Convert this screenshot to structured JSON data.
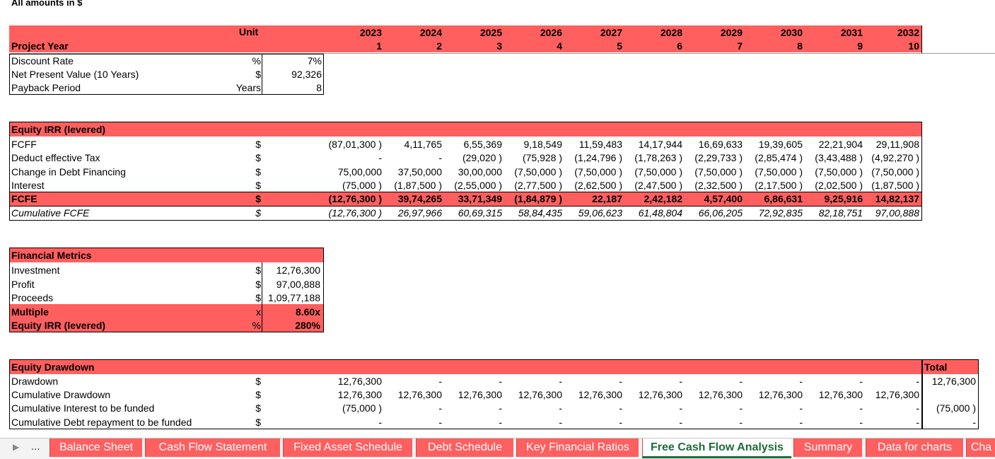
{
  "note": "All amounts in $",
  "header": {
    "unit": "Unit",
    "project_year": "Project Year",
    "years": [
      "2023",
      "2024",
      "2025",
      "2026",
      "2027",
      "2028",
      "2029",
      "2030",
      "2031",
      "2032"
    ],
    "nums": [
      "1",
      "2",
      "3",
      "4",
      "5",
      "6",
      "7",
      "8",
      "9",
      "10"
    ]
  },
  "summary": [
    {
      "label": "Discount Rate",
      "unit": "%",
      "value": "7%"
    },
    {
      "label": "Net Present Value (10 Years)",
      "unit": "$",
      "value": "92,326"
    },
    {
      "label": "Payback Period",
      "unit": "Years",
      "value": "8"
    }
  ],
  "irr": {
    "title": "Equity IRR (levered)",
    "rows": [
      {
        "label": "FCFF",
        "unit": "$",
        "vals": [
          "(87,01,300 )",
          "4,11,765",
          "6,55,369",
          "9,18,549",
          "11,59,483",
          "14,17,944",
          "16,69,633",
          "19,39,605",
          "22,21,904",
          "29,11,908"
        ]
      },
      {
        "label": "Deduct effective Tax",
        "unit": "$",
        "vals": [
          "-",
          "-",
          "(29,020 )",
          "(75,928 )",
          "(1,24,796 )",
          "(1,78,263 )",
          "(2,29,733 )",
          "(2,85,474 )",
          "(3,43,488 )",
          "(4,92,270 )"
        ]
      },
      {
        "label": "Change in Debt Financing",
        "unit": "$",
        "vals": [
          "75,00,000",
          "37,50,000",
          "30,00,000",
          "(7,50,000 )",
          "(7,50,000 )",
          "(7,50,000 )",
          "(7,50,000 )",
          "(7,50,000 )",
          "(7,50,000 )",
          "(7,50,000 )"
        ]
      },
      {
        "label": "Interest",
        "unit": "$",
        "vals": [
          "(75,000 )",
          "(1,87,500 )",
          "(2,55,000 )",
          "(2,77,500 )",
          "(2,62,500 )",
          "(2,47,500 )",
          "(2,32,500 )",
          "(2,17,500 )",
          "(2,02,500 )",
          "(1,87,500 )"
        ]
      },
      {
        "label": "FCFE",
        "unit": "$",
        "vals": [
          "(12,76,300 )",
          "39,74,265",
          "33,71,349",
          "(1,84,879 )",
          "22,187",
          "2,42,182",
          "4,57,400",
          "6,86,631",
          "9,25,916",
          "14,82,137"
        ]
      },
      {
        "label": "Cumulative FCFE",
        "unit": "$",
        "vals": [
          "(12,76,300 )",
          "26,97,966",
          "60,69,315",
          "58,84,435",
          "59,06,623",
          "61,48,804",
          "66,06,205",
          "72,92,835",
          "82,18,751",
          "97,00,888"
        ]
      }
    ]
  },
  "metrics": {
    "title": "Financial Metrics",
    "rows": [
      {
        "label": "Investment",
        "unit": "$",
        "value": "12,76,300"
      },
      {
        "label": "Profit",
        "unit": "$",
        "value": "97,00,888"
      },
      {
        "label": "Proceeds",
        "unit": "$",
        "value": "1,09,77,188"
      },
      {
        "label": "Multiple",
        "unit": "x",
        "value": "8.60x"
      },
      {
        "label": "Equity IRR (levered)",
        "unit": "%",
        "value": "280%"
      }
    ]
  },
  "drawdown": {
    "title": "Equity Drawdown",
    "total_label": "Total",
    "rows": [
      {
        "label": "Drawdown",
        "unit": "$",
        "vals": [
          "12,76,300",
          "-",
          "-",
          "-",
          "-",
          "-",
          "-",
          "-",
          "-",
          "-"
        ],
        "total": "12,76,300"
      },
      {
        "label": "Cumulative Drawdown",
        "unit": "$",
        "vals": [
          "12,76,300",
          "12,76,300",
          "12,76,300",
          "12,76,300",
          "12,76,300",
          "12,76,300",
          "12,76,300",
          "12,76,300",
          "12,76,300",
          "12,76,300"
        ],
        "total": ""
      },
      {
        "label": "Cumulative Interest to be funded",
        "unit": "$",
        "vals": [
          "(75,000 )",
          "-",
          "-",
          "-",
          "-",
          "-",
          "-",
          "-",
          "-",
          "-"
        ],
        "total": "(75,000 )"
      },
      {
        "label": "Cumulative Debt repayment to be funded",
        "unit": "$",
        "vals": [
          "-",
          "-",
          "-",
          "-",
          "-",
          "-",
          "-",
          "-",
          "-",
          "-"
        ],
        "total": "-"
      }
    ]
  },
  "tabs": {
    "ellipsis": "...",
    "items": [
      "Balance Sheet",
      "Cash Flow Statement",
      "Fixed Asset Schedule",
      "Debt Schedule",
      "Key Financial Ratios",
      "Free Cash Flow Analysis",
      "Summary",
      "Data for charts",
      "Cha"
    ],
    "active": "Free Cash Flow Analysis"
  },
  "colors": {
    "band": "#ff5f5f",
    "active_tab_text": "#1e6b3a"
  }
}
